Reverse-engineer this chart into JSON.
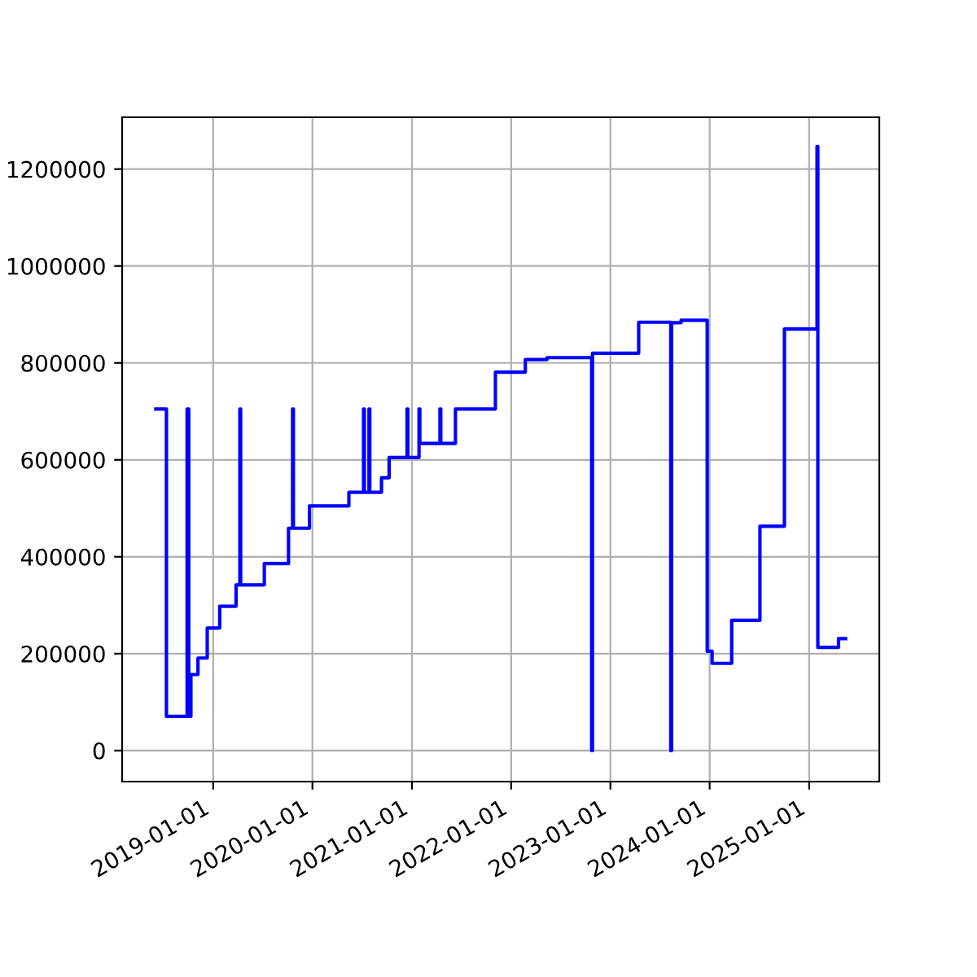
{
  "chart_data": {
    "type": "step",
    "x": [
      "2018-06-04",
      "2018-07-13",
      "2018-09-27",
      "2018-10-03",
      "2018-10-11",
      "2018-11-06",
      "2018-12-10",
      "2019-01-25",
      "2019-03-26",
      "2019-04-09",
      "2019-04-12",
      "2019-07-08",
      "2019-10-05",
      "2019-10-20",
      "2019-10-23",
      "2019-12-21",
      "2020-05-14",
      "2020-07-07",
      "2020-07-10",
      "2020-07-27",
      "2020-07-30",
      "2020-09-11",
      "2020-10-09",
      "2020-12-14",
      "2020-12-17",
      "2021-01-27",
      "2021-01-30",
      "2021-04-14",
      "2021-04-17",
      "2021-06-10",
      "2021-11-04",
      "2022-02-22",
      "2022-05-13",
      "2022-10-24",
      "2022-10-27",
      "2023-04-15",
      "2023-08-11",
      "2023-08-14",
      "2023-09-18",
      "2023-12-23",
      "2024-01-10",
      "2024-03-22",
      "2024-07-04",
      "2024-10-02",
      "2025-01-30",
      "2025-02-02",
      "2025-04-19",
      "2025-05-15"
    ],
    "series": [
      {
        "color": "#0000ff",
        "values": [
          705000,
          70600,
          705000,
          70600,
          157000,
          191000,
          253000,
          298000,
          342000,
          705000,
          342000,
          386000,
          459000,
          705000,
          459000,
          505000,
          533000,
          705000,
          533000,
          705000,
          533000,
          563000,
          605000,
          705000,
          605000,
          705000,
          634000,
          705000,
          634000,
          705000,
          781000,
          807000,
          811000,
          0,
          820000,
          884000,
          0,
          883000,
          888000,
          205000,
          180000,
          269000,
          463000,
          870000,
          1247000,
          213000,
          231000,
          231000
        ]
      }
    ],
    "xlim": [
      "2018-01-31",
      "2025-09-16"
    ],
    "xticks": [
      "2019-01-01",
      "2020-01-01",
      "2021-01-01",
      "2022-01-01",
      "2023-01-01",
      "2024-01-01",
      "2025-01-01"
    ],
    "ylim": [
      -64000,
      1307000
    ],
    "yticks": [
      0,
      200000,
      400000,
      600000,
      800000,
      1000000,
      1200000
    ],
    "grid": true
  }
}
